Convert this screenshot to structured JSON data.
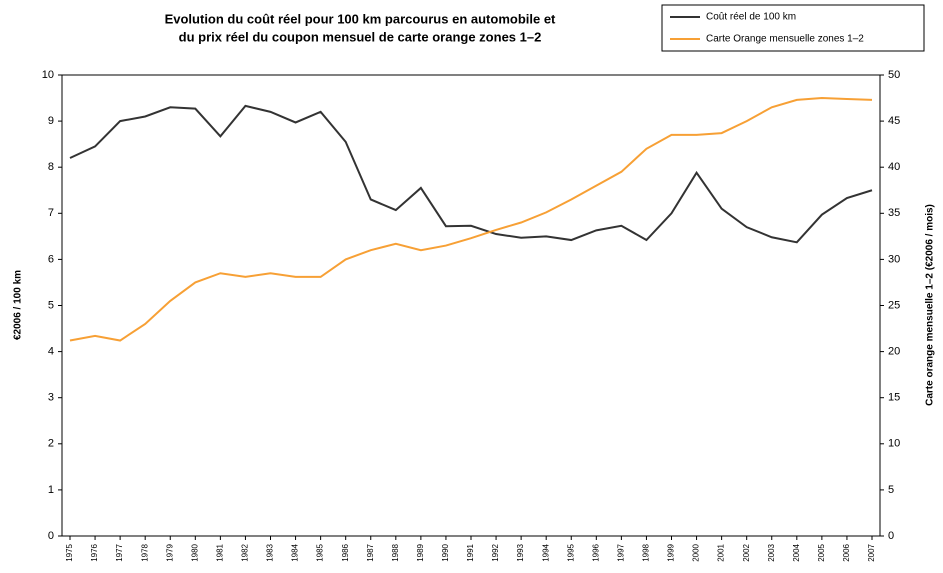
{
  "chart_data": {
    "type": "line",
    "title": [
      "Evolution du coût réel pour 100 km parcourus en automobile et",
      "du prix réel du coupon mensuel de carte orange zones 1–2"
    ],
    "y_label": "€2006 / 100 km",
    "y2_label": "Carte orange mensuelle 1–2 (€2006 / mois)",
    "categories": [
      "1975",
      "1976",
      "1977",
      "1978",
      "1979",
      "1980",
      "1981",
      "1982",
      "1983",
      "1984",
      "1985",
      "1986",
      "1987",
      "1988",
      "1989",
      "1990",
      "1991",
      "1992",
      "1993",
      "1994",
      "1995",
      "1996",
      "1997",
      "1998",
      "1999",
      "2000",
      "2001",
      "2002",
      "2003",
      "2004",
      "2005",
      "2006",
      "2007"
    ],
    "series": [
      {
        "name": "Coût réel de 100 km",
        "color": "#333333",
        "values": [
          8.2,
          8.45,
          9.0,
          9.1,
          9.3,
          9.27,
          8.67,
          9.33,
          9.2,
          8.97,
          9.2,
          8.55,
          7.3,
          7.07,
          7.55,
          6.72,
          6.73,
          6.55,
          6.47,
          6.5,
          6.42,
          6.63,
          6.73,
          6.42,
          7.0,
          7.88,
          7.1,
          6.7,
          6.48,
          6.37,
          6.97,
          7.33,
          7.5
        ]
      },
      {
        "name": "Carte Orange mensuelle zones 1–2",
        "color": "#f7a035",
        "axis": "y2",
        "values": [
          21.2,
          21.7,
          21.2,
          23.0,
          25.5,
          27.5,
          28.5,
          28.1,
          28.5,
          28.1,
          28.1,
          30.0,
          31.0,
          31.7,
          31.0,
          31.5,
          32.3,
          33.2,
          34.0,
          35.1,
          36.5,
          38.0,
          39.5,
          42.0,
          43.5,
          43.5,
          43.7,
          45.0,
          46.5,
          47.3,
          47.5,
          47.4,
          47.3
        ]
      }
    ],
    "ylim": [
      0,
      10
    ],
    "yticks": [
      0,
      1,
      2,
      3,
      4,
      5,
      6,
      7,
      8,
      9,
      10
    ],
    "y2lim": [
      0,
      50
    ],
    "y2ticks": [
      0,
      5,
      10,
      15,
      20,
      25,
      30,
      35,
      40,
      45,
      50
    ],
    "legend": "top-right",
    "grid": false
  }
}
